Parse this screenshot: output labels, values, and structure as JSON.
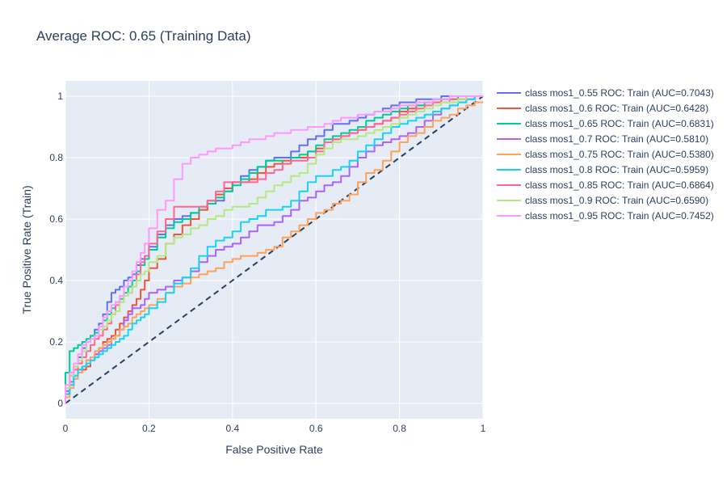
{
  "chart_data": {
    "type": "line",
    "title": "Average ROC: 0.65 (Training Data)",
    "xlabel": "False Positive Rate",
    "ylabel": "True Positive Rate (Train)",
    "xlim": [
      0,
      1
    ],
    "ylim": [
      -0.05,
      1.05
    ],
    "xticks": [
      0,
      0.2,
      0.4,
      0.6,
      0.8,
      1
    ],
    "xtick_labels": [
      "0",
      "0.2",
      "0.4",
      "0.6",
      "0.8",
      "1"
    ],
    "yticks": [
      0,
      0.2,
      0.4,
      0.6,
      0.8,
      1
    ],
    "ytick_labels": [
      "0",
      "0.2",
      "0.4",
      "0.6",
      "0.8",
      "1"
    ],
    "grid": true,
    "legend_position": "right",
    "plot_background": "#e5ecf6",
    "series": [
      {
        "name": "class mos1_0.55 ROC: Train (AUC=0.7043)",
        "color": "#636efa",
        "x": [
          0,
          0.01,
          0.02,
          0.03,
          0.04,
          0.05,
          0.06,
          0.07,
          0.08,
          0.09,
          0.1,
          0.11,
          0.12,
          0.13,
          0.14,
          0.15,
          0.16,
          0.17,
          0.18,
          0.19,
          0.2,
          0.22,
          0.24,
          0.26,
          0.28,
          0.3,
          0.32,
          0.34,
          0.36,
          0.38,
          0.4,
          0.42,
          0.44,
          0.46,
          0.48,
          0.5,
          0.52,
          0.54,
          0.56,
          0.58,
          0.6,
          0.62,
          0.64,
          0.66,
          0.68,
          0.7,
          0.72,
          0.74,
          0.76,
          0.78,
          0.8,
          0.82,
          0.84,
          0.86,
          0.88,
          0.9,
          0.92,
          0.94,
          0.96,
          0.98,
          1
        ],
        "y": [
          0,
          0.04,
          0.09,
          0.12,
          0.15,
          0.18,
          0.2,
          0.22,
          0.24,
          0.26,
          0.29,
          0.33,
          0.36,
          0.37,
          0.38,
          0.4,
          0.41,
          0.42,
          0.45,
          0.47,
          0.48,
          0.51,
          0.55,
          0.58,
          0.6,
          0.61,
          0.62,
          0.63,
          0.65,
          0.66,
          0.69,
          0.72,
          0.74,
          0.76,
          0.77,
          0.79,
          0.8,
          0.8,
          0.82,
          0.84,
          0.86,
          0.87,
          0.89,
          0.91,
          0.91,
          0.92,
          0.93,
          0.94,
          0.95,
          0.96,
          0.97,
          0.98,
          0.98,
          0.99,
          0.99,
          0.99,
          1,
          1,
          1,
          1,
          1
        ]
      },
      {
        "name": "class mos1_0.6 ROC: Train (AUC=0.6428)",
        "color": "#ef553b",
        "x": [
          0,
          0.01,
          0.02,
          0.03,
          0.04,
          0.05,
          0.06,
          0.07,
          0.08,
          0.09,
          0.1,
          0.11,
          0.12,
          0.13,
          0.14,
          0.15,
          0.16,
          0.17,
          0.18,
          0.19,
          0.2,
          0.22,
          0.24,
          0.26,
          0.28,
          0.3,
          0.32,
          0.34,
          0.36,
          0.38,
          0.4,
          0.42,
          0.44,
          0.46,
          0.48,
          0.5,
          0.52,
          0.54,
          0.56,
          0.58,
          0.6,
          0.62,
          0.64,
          0.66,
          0.68,
          0.7,
          0.72,
          0.74,
          0.76,
          0.78,
          0.8,
          0.82,
          0.84,
          0.86,
          0.88,
          0.9,
          0.92,
          0.94,
          0.96,
          0.98,
          1
        ],
        "y": [
          0,
          0.03,
          0.06,
          0.08,
          0.1,
          0.11,
          0.12,
          0.14,
          0.16,
          0.18,
          0.2,
          0.21,
          0.22,
          0.24,
          0.26,
          0.28,
          0.3,
          0.32,
          0.34,
          0.37,
          0.4,
          0.44,
          0.47,
          0.52,
          0.55,
          0.58,
          0.6,
          0.63,
          0.66,
          0.68,
          0.7,
          0.72,
          0.72,
          0.73,
          0.75,
          0.77,
          0.78,
          0.79,
          0.8,
          0.8,
          0.82,
          0.83,
          0.85,
          0.86,
          0.87,
          0.88,
          0.89,
          0.9,
          0.91,
          0.92,
          0.93,
          0.95,
          0.96,
          0.97,
          0.98,
          0.98,
          0.99,
          0.99,
          0.99,
          1,
          1
        ]
      },
      {
        "name": "class mos1_0.65 ROC: Train (AUC=0.6831)",
        "color": "#00cc96",
        "x": [
          0,
          0.01,
          0.02,
          0.03,
          0.04,
          0.05,
          0.06,
          0.07,
          0.08,
          0.09,
          0.1,
          0.11,
          0.12,
          0.13,
          0.14,
          0.15,
          0.16,
          0.17,
          0.18,
          0.19,
          0.2,
          0.22,
          0.24,
          0.26,
          0.28,
          0.3,
          0.32,
          0.34,
          0.36,
          0.38,
          0.4,
          0.42,
          0.44,
          0.46,
          0.48,
          0.5,
          0.52,
          0.54,
          0.56,
          0.58,
          0.6,
          0.62,
          0.64,
          0.66,
          0.68,
          0.7,
          0.72,
          0.74,
          0.76,
          0.78,
          0.8,
          0.82,
          0.84,
          0.86,
          0.88,
          0.9,
          0.92,
          0.94,
          0.96,
          0.98,
          1
        ],
        "y": [
          0,
          0.1,
          0.17,
          0.18,
          0.19,
          0.2,
          0.21,
          0.22,
          0.23,
          0.25,
          0.27,
          0.29,
          0.31,
          0.33,
          0.34,
          0.36,
          0.38,
          0.4,
          0.43,
          0.45,
          0.47,
          0.5,
          0.54,
          0.57,
          0.59,
          0.6,
          0.62,
          0.64,
          0.65,
          0.67,
          0.69,
          0.71,
          0.73,
          0.75,
          0.77,
          0.79,
          0.79,
          0.78,
          0.8,
          0.81,
          0.82,
          0.84,
          0.86,
          0.87,
          0.88,
          0.89,
          0.9,
          0.92,
          0.93,
          0.94,
          0.95,
          0.96,
          0.97,
          0.97,
          0.98,
          0.99,
          0.99,
          0.99,
          1,
          1,
          1
        ]
      },
      {
        "name": "class mos1_0.7 ROC: Train (AUC=0.5810)",
        "color": "#ab63fa",
        "x": [
          0,
          0.01,
          0.02,
          0.03,
          0.04,
          0.05,
          0.06,
          0.07,
          0.08,
          0.09,
          0.1,
          0.11,
          0.12,
          0.13,
          0.14,
          0.15,
          0.16,
          0.17,
          0.18,
          0.19,
          0.2,
          0.22,
          0.24,
          0.26,
          0.28,
          0.3,
          0.32,
          0.34,
          0.36,
          0.38,
          0.4,
          0.42,
          0.44,
          0.46,
          0.48,
          0.5,
          0.52,
          0.54,
          0.56,
          0.58,
          0.6,
          0.62,
          0.64,
          0.66,
          0.68,
          0.7,
          0.72,
          0.74,
          0.76,
          0.78,
          0.8,
          0.82,
          0.84,
          0.86,
          0.88,
          0.9,
          0.92,
          0.94,
          0.96,
          0.98,
          1
        ],
        "y": [
          0,
          0.04,
          0.07,
          0.09,
          0.11,
          0.12,
          0.14,
          0.15,
          0.16,
          0.17,
          0.18,
          0.19,
          0.21,
          0.22,
          0.24,
          0.27,
          0.29,
          0.31,
          0.31,
          0.32,
          0.34,
          0.36,
          0.37,
          0.38,
          0.4,
          0.41,
          0.43,
          0.46,
          0.48,
          0.5,
          0.51,
          0.52,
          0.54,
          0.56,
          0.58,
          0.58,
          0.59,
          0.61,
          0.63,
          0.66,
          0.67,
          0.69,
          0.71,
          0.72,
          0.74,
          0.77,
          0.8,
          0.82,
          0.84,
          0.85,
          0.86,
          0.87,
          0.88,
          0.9,
          0.92,
          0.94,
          0.96,
          0.97,
          0.98,
          0.99,
          1
        ]
      },
      {
        "name": "class mos1_0.75 ROC: Train (AUC=0.5380)",
        "color": "#ffa15a",
        "x": [
          0,
          0.01,
          0.02,
          0.03,
          0.04,
          0.05,
          0.06,
          0.07,
          0.08,
          0.09,
          0.1,
          0.11,
          0.12,
          0.13,
          0.14,
          0.15,
          0.16,
          0.17,
          0.18,
          0.19,
          0.2,
          0.22,
          0.24,
          0.26,
          0.28,
          0.3,
          0.32,
          0.34,
          0.36,
          0.38,
          0.4,
          0.42,
          0.44,
          0.46,
          0.48,
          0.5,
          0.52,
          0.54,
          0.56,
          0.58,
          0.6,
          0.62,
          0.64,
          0.66,
          0.68,
          0.7,
          0.72,
          0.74,
          0.76,
          0.78,
          0.8,
          0.82,
          0.84,
          0.86,
          0.88,
          0.9,
          0.92,
          0.94,
          0.96,
          0.98,
          1
        ],
        "y": [
          0,
          0.02,
          0.05,
          0.08,
          0.1,
          0.12,
          0.14,
          0.15,
          0.17,
          0.18,
          0.19,
          0.2,
          0.21,
          0.22,
          0.24,
          0.25,
          0.26,
          0.28,
          0.29,
          0.3,
          0.31,
          0.32,
          0.34,
          0.36,
          0.38,
          0.39,
          0.41,
          0.42,
          0.43,
          0.44,
          0.46,
          0.47,
          0.48,
          0.48,
          0.49,
          0.5,
          0.51,
          0.54,
          0.56,
          0.58,
          0.6,
          0.62,
          0.63,
          0.65,
          0.66,
          0.68,
          0.72,
          0.75,
          0.76,
          0.79,
          0.82,
          0.85,
          0.87,
          0.88,
          0.9,
          0.92,
          0.93,
          0.94,
          0.96,
          0.97,
          0.98
        ]
      },
      {
        "name": "class mos1_0.8 ROC: Train (AUC=0.5959)",
        "color": "#19d3f3",
        "x": [
          0,
          0.01,
          0.02,
          0.03,
          0.04,
          0.05,
          0.06,
          0.07,
          0.08,
          0.09,
          0.1,
          0.11,
          0.12,
          0.13,
          0.14,
          0.15,
          0.16,
          0.17,
          0.18,
          0.19,
          0.2,
          0.22,
          0.24,
          0.26,
          0.28,
          0.3,
          0.32,
          0.34,
          0.36,
          0.38,
          0.4,
          0.42,
          0.44,
          0.46,
          0.48,
          0.5,
          0.52,
          0.54,
          0.56,
          0.58,
          0.6,
          0.62,
          0.64,
          0.66,
          0.68,
          0.7,
          0.72,
          0.74,
          0.76,
          0.78,
          0.8,
          0.82,
          0.84,
          0.86,
          0.88,
          0.9,
          0.92,
          0.94,
          0.96,
          0.98,
          1
        ],
        "y": [
          0,
          0.03,
          0.06,
          0.09,
          0.11,
          0.12,
          0.13,
          0.14,
          0.15,
          0.16,
          0.17,
          0.18,
          0.19,
          0.2,
          0.21,
          0.22,
          0.24,
          0.26,
          0.27,
          0.28,
          0.29,
          0.31,
          0.33,
          0.36,
          0.39,
          0.41,
          0.44,
          0.48,
          0.51,
          0.53,
          0.54,
          0.56,
          0.59,
          0.6,
          0.61,
          0.63,
          0.63,
          0.64,
          0.66,
          0.69,
          0.72,
          0.74,
          0.74,
          0.76,
          0.77,
          0.79,
          0.82,
          0.84,
          0.86,
          0.88,
          0.9,
          0.91,
          0.92,
          0.93,
          0.94,
          0.95,
          0.96,
          0.97,
          0.98,
          0.99,
          1
        ]
      },
      {
        "name": "class mos1_0.85 ROC: Train (AUC=0.6864)",
        "color": "#ff6692",
        "x": [
          0,
          0.01,
          0.02,
          0.03,
          0.04,
          0.05,
          0.06,
          0.07,
          0.08,
          0.09,
          0.1,
          0.11,
          0.12,
          0.13,
          0.14,
          0.15,
          0.16,
          0.17,
          0.18,
          0.19,
          0.2,
          0.22,
          0.24,
          0.26,
          0.28,
          0.3,
          0.32,
          0.34,
          0.36,
          0.38,
          0.4,
          0.42,
          0.44,
          0.46,
          0.48,
          0.5,
          0.52,
          0.54,
          0.56,
          0.58,
          0.6,
          0.62,
          0.64,
          0.66,
          0.68,
          0.7,
          0.72,
          0.74,
          0.76,
          0.78,
          0.8,
          0.82,
          0.84,
          0.86,
          0.88,
          0.9,
          0.92,
          0.94,
          0.96,
          0.98,
          1
        ],
        "y": [
          0,
          0.05,
          0.09,
          0.11,
          0.13,
          0.15,
          0.17,
          0.19,
          0.21,
          0.22,
          0.24,
          0.26,
          0.29,
          0.32,
          0.33,
          0.35,
          0.36,
          0.38,
          0.42,
          0.46,
          0.48,
          0.52,
          0.56,
          0.6,
          0.64,
          0.64,
          0.64,
          0.64,
          0.66,
          0.69,
          0.72,
          0.72,
          0.72,
          0.72,
          0.73,
          0.75,
          0.76,
          0.78,
          0.79,
          0.79,
          0.8,
          0.82,
          0.85,
          0.86,
          0.87,
          0.88,
          0.89,
          0.9,
          0.91,
          0.92,
          0.93,
          0.94,
          0.95,
          0.96,
          0.97,
          0.98,
          0.98,
          0.99,
          0.99,
          1,
          1
        ]
      },
      {
        "name": "class mos1_0.9 ROC: Train (AUC=0.6590)",
        "color": "#b6e880",
        "x": [
          0,
          0.01,
          0.02,
          0.03,
          0.04,
          0.05,
          0.06,
          0.07,
          0.08,
          0.09,
          0.1,
          0.11,
          0.12,
          0.13,
          0.14,
          0.15,
          0.16,
          0.17,
          0.18,
          0.19,
          0.2,
          0.22,
          0.24,
          0.26,
          0.28,
          0.3,
          0.32,
          0.34,
          0.36,
          0.38,
          0.4,
          0.42,
          0.44,
          0.46,
          0.48,
          0.5,
          0.52,
          0.54,
          0.56,
          0.58,
          0.6,
          0.62,
          0.64,
          0.66,
          0.68,
          0.7,
          0.72,
          0.74,
          0.76,
          0.78,
          0.8,
          0.82,
          0.84,
          0.86,
          0.88,
          0.9,
          0.92,
          0.94,
          0.96,
          0.98,
          1
        ],
        "y": [
          0,
          0.05,
          0.09,
          0.12,
          0.14,
          0.17,
          0.2,
          0.21,
          0.22,
          0.24,
          0.25,
          0.27,
          0.29,
          0.3,
          0.33,
          0.35,
          0.36,
          0.38,
          0.4,
          0.42,
          0.43,
          0.46,
          0.48,
          0.52,
          0.54,
          0.55,
          0.57,
          0.58,
          0.6,
          0.61,
          0.63,
          0.64,
          0.64,
          0.65,
          0.67,
          0.69,
          0.71,
          0.72,
          0.74,
          0.75,
          0.78,
          0.81,
          0.83,
          0.85,
          0.86,
          0.86,
          0.87,
          0.88,
          0.89,
          0.9,
          0.91,
          0.93,
          0.94,
          0.95,
          0.96,
          0.97,
          0.98,
          0.98,
          0.99,
          1,
          1
        ]
      },
      {
        "name": "class mos1_0.95 ROC: Train (AUC=0.7452)",
        "color": "#ff97ff",
        "x": [
          0,
          0.01,
          0.02,
          0.03,
          0.04,
          0.05,
          0.06,
          0.07,
          0.08,
          0.09,
          0.1,
          0.11,
          0.12,
          0.13,
          0.14,
          0.15,
          0.16,
          0.17,
          0.18,
          0.19,
          0.2,
          0.22,
          0.24,
          0.26,
          0.28,
          0.3,
          0.32,
          0.34,
          0.36,
          0.38,
          0.4,
          0.42,
          0.44,
          0.46,
          0.48,
          0.5,
          0.52,
          0.54,
          0.56,
          0.58,
          0.6,
          0.62,
          0.64,
          0.66,
          0.68,
          0.7,
          0.72,
          0.74,
          0.76,
          0.78,
          0.8,
          0.82,
          0.84,
          0.86,
          0.88,
          0.9,
          0.92,
          0.94,
          0.96,
          0.98,
          1
        ],
        "y": [
          0,
          0.06,
          0.1,
          0.13,
          0.16,
          0.19,
          0.2,
          0.21,
          0.22,
          0.25,
          0.28,
          0.3,
          0.32,
          0.33,
          0.35,
          0.38,
          0.4,
          0.43,
          0.46,
          0.49,
          0.52,
          0.57,
          0.63,
          0.66,
          0.73,
          0.78,
          0.8,
          0.81,
          0.82,
          0.83,
          0.83,
          0.84,
          0.85,
          0.86,
          0.86,
          0.87,
          0.88,
          0.88,
          0.89,
          0.89,
          0.9,
          0.9,
          0.91,
          0.92,
          0.93,
          0.93,
          0.94,
          0.94,
          0.95,
          0.95,
          0.96,
          0.97,
          0.97,
          0.98,
          0.98,
          0.99,
          0.99,
          1,
          1,
          1,
          1
        ]
      }
    ],
    "reference_line": {
      "x": [
        0,
        1
      ],
      "y": [
        0,
        1
      ],
      "color": "#2a3f5f",
      "dash": "dashed"
    }
  }
}
